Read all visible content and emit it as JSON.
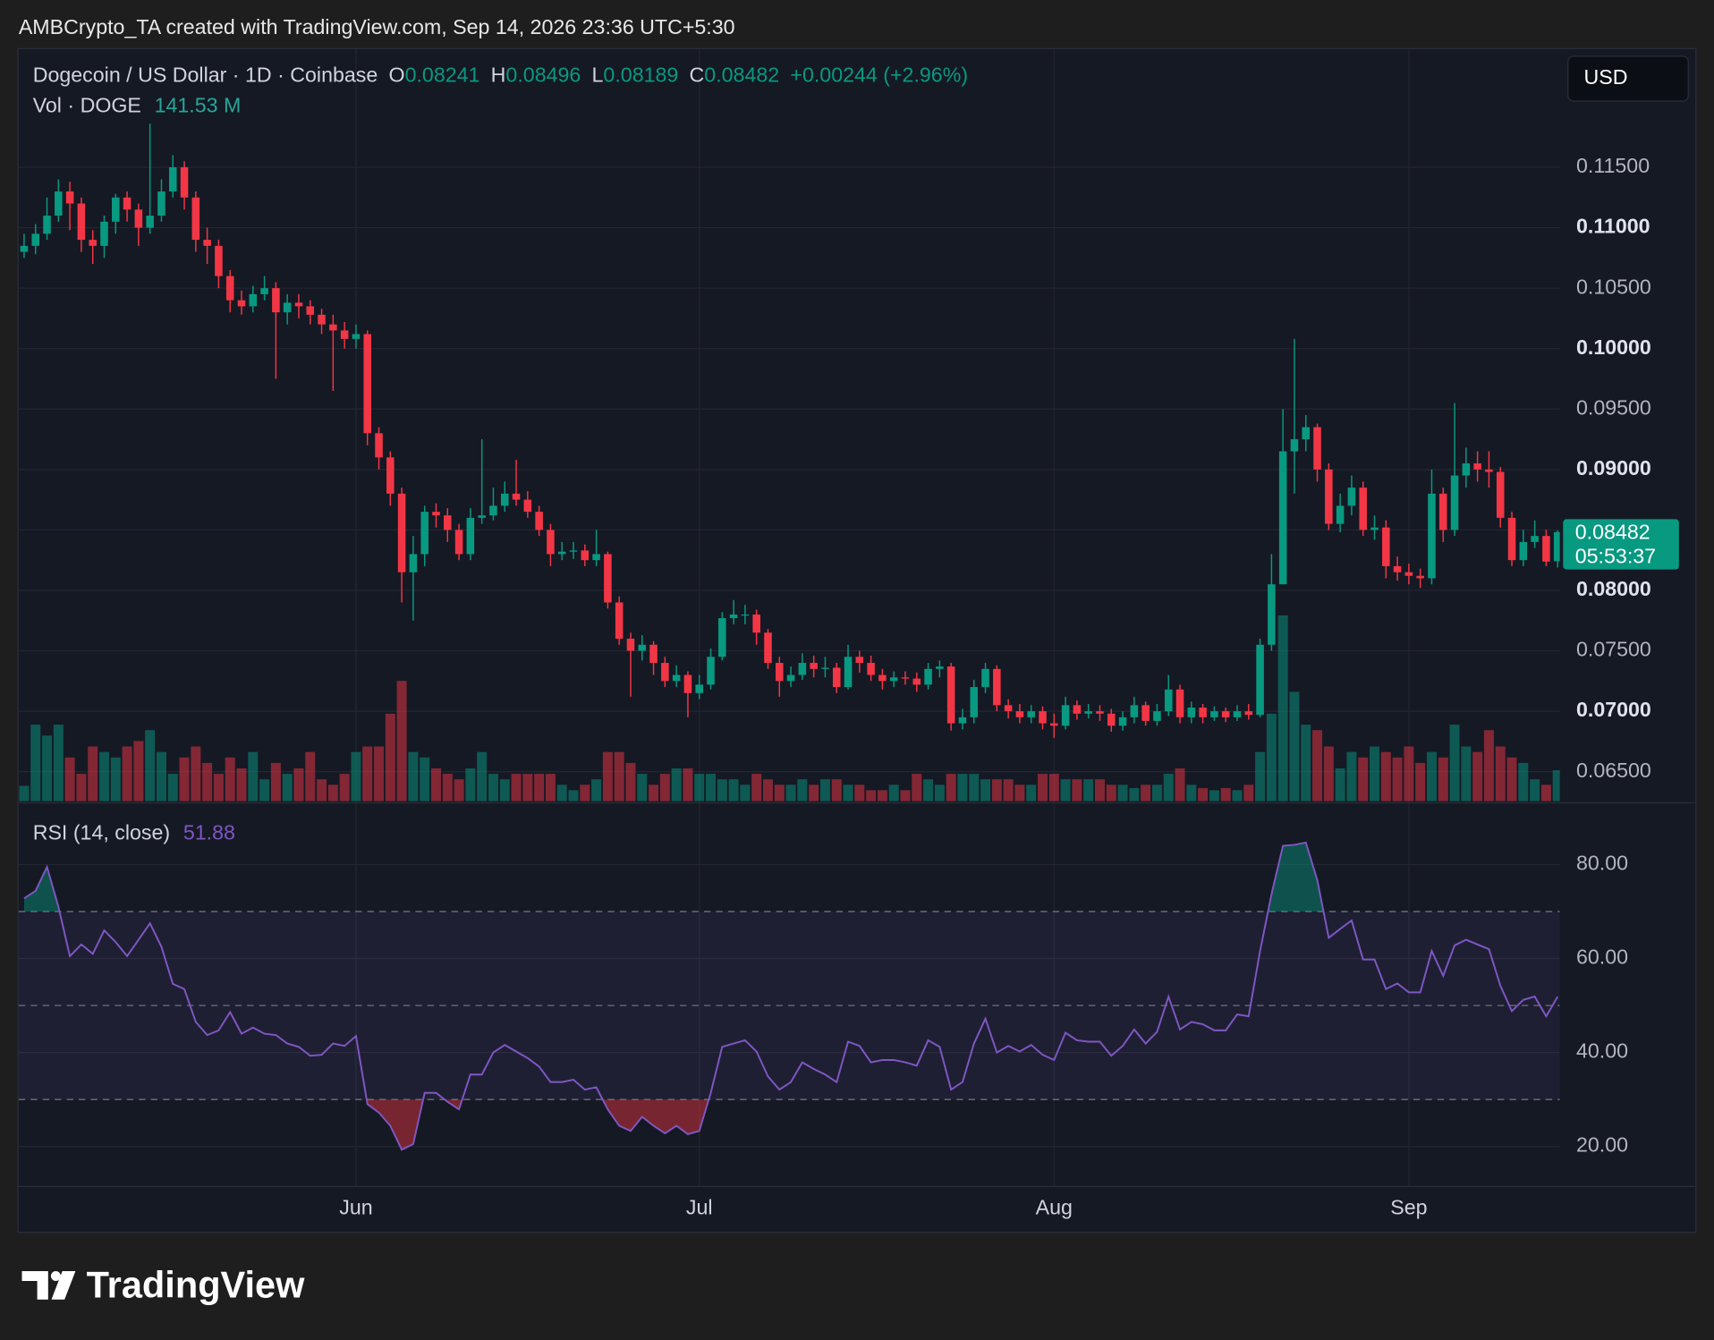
{
  "header": {
    "attribution": "AMBCrypto_TA created with TradingView.com, Sep 14, 2026 23:36 UTC+5:30",
    "brand": "TradingView"
  },
  "chart_data": [
    {
      "type": "candlestick",
      "title": "Dogecoin / US Dollar · 1D · Coinbase",
      "ohlc_labels": [
        "O",
        "H",
        "L",
        "C"
      ],
      "change_label": "+0.00244 (+2.96%)",
      "currency": "USD",
      "countdown": "05:53:37",
      "up_color": "#089981",
      "down_color": "#f23645",
      "grid": true,
      "categories": [
        null,
        null,
        null,
        null,
        null,
        null,
        null,
        null,
        null,
        null,
        null,
        null,
        null,
        null,
        null,
        null,
        null,
        null,
        null,
        null,
        null,
        null,
        null,
        null,
        null,
        null,
        null,
        null,
        null,
        "Jun",
        null,
        null,
        null,
        null,
        null,
        null,
        null,
        null,
        null,
        null,
        null,
        null,
        null,
        null,
        null,
        null,
        null,
        null,
        null,
        null,
        null,
        null,
        null,
        null,
        null,
        null,
        null,
        null,
        null,
        "Jul",
        null,
        null,
        null,
        null,
        null,
        null,
        null,
        null,
        null,
        null,
        null,
        null,
        null,
        null,
        null,
        null,
        null,
        null,
        null,
        null,
        null,
        null,
        null,
        null,
        null,
        null,
        null,
        null,
        null,
        null,
        "Aug",
        null,
        null,
        null,
        null,
        null,
        null,
        null,
        null,
        null,
        null,
        null,
        null,
        null,
        null,
        null,
        null,
        null,
        null,
        null,
        null,
        null,
        null,
        null,
        null,
        null,
        null,
        null,
        null,
        null,
        null,
        "Sep",
        null,
        null,
        null,
        null,
        null,
        null,
        null,
        null,
        null,
        null,
        null,
        null,
        null
      ],
      "open": [
        0.108,
        0.1085,
        0.1095,
        0.111,
        0.113,
        0.112,
        0.109,
        0.1085,
        0.1105,
        0.1125,
        0.1115,
        0.11,
        0.111,
        0.113,
        0.115,
        0.1125,
        0.109,
        0.1085,
        0.106,
        0.104,
        0.1035,
        0.1045,
        0.105,
        0.103,
        0.1038,
        0.1035,
        0.1028,
        0.102,
        0.1015,
        0.1008,
        0.1012,
        0.093,
        0.091,
        0.088,
        0.0815,
        0.083,
        0.0865,
        0.0862,
        0.085,
        0.083,
        0.086,
        0.0862,
        0.087,
        0.088,
        0.0875,
        0.0865,
        0.085,
        0.083,
        0.0832,
        0.0833,
        0.0825,
        0.083,
        0.079,
        0.076,
        0.075,
        0.0755,
        0.074,
        0.0725,
        0.073,
        0.0715,
        0.0722,
        0.0745,
        0.0777,
        0.078,
        0.078,
        0.0765,
        0.074,
        0.0725,
        0.073,
        0.074,
        0.0735,
        0.0736,
        0.072,
        0.0745,
        0.074,
        0.073,
        0.0725,
        0.0728,
        0.0727,
        0.0722,
        0.0735,
        0.0737,
        0.069,
        0.0695,
        0.072,
        0.0735,
        0.0705,
        0.07,
        0.0695,
        0.07,
        0.069,
        0.0688,
        0.0705,
        0.0698,
        0.07,
        0.0698,
        0.0688,
        0.0695,
        0.0705,
        0.0692,
        0.07,
        0.0718,
        0.0695,
        0.0703,
        0.0695,
        0.07,
        0.0695,
        0.07,
        0.0697,
        0.0755,
        0.0805,
        0.0915,
        0.0925,
        0.0935,
        0.09,
        0.0855,
        0.087,
        0.0885,
        0.085,
        0.0852,
        0.082,
        0.0815,
        0.0812,
        0.081,
        0.088,
        0.085,
        0.0895,
        0.0905,
        0.09,
        0.0898,
        0.086,
        0.0825,
        0.084,
        0.0845,
        0.08241
      ],
      "high": [
        0.1095,
        0.1103,
        0.1125,
        0.114,
        0.1138,
        0.1125,
        0.1098,
        0.111,
        0.1128,
        0.113,
        0.112,
        0.1186,
        0.114,
        0.116,
        0.1155,
        0.113,
        0.11,
        0.109,
        0.1065,
        0.1048,
        0.1052,
        0.106,
        0.1055,
        0.1045,
        0.1045,
        0.104,
        0.1033,
        0.1028,
        0.1022,
        0.102,
        0.1015,
        0.0935,
        0.0915,
        0.0885,
        0.0845,
        0.087,
        0.0872,
        0.0868,
        0.0855,
        0.0868,
        0.0925,
        0.0885,
        0.089,
        0.0908,
        0.0882,
        0.087,
        0.0855,
        0.084,
        0.084,
        0.0838,
        0.085,
        0.0832,
        0.0795,
        0.0765,
        0.0763,
        0.0758,
        0.0745,
        0.0738,
        0.0733,
        0.073,
        0.0752,
        0.0782,
        0.0792,
        0.0788,
        0.0784,
        0.0768,
        0.0745,
        0.0737,
        0.0748,
        0.0746,
        0.0745,
        0.074,
        0.0755,
        0.075,
        0.0746,
        0.0735,
        0.0733,
        0.0733,
        0.0732,
        0.074,
        0.0742,
        0.074,
        0.0702,
        0.0726,
        0.074,
        0.0738,
        0.071,
        0.0706,
        0.0705,
        0.0704,
        0.0698,
        0.0712,
        0.0709,
        0.0706,
        0.0705,
        0.0702,
        0.07,
        0.0712,
        0.0708,
        0.0706,
        0.073,
        0.0722,
        0.0708,
        0.0706,
        0.0704,
        0.0703,
        0.0705,
        0.0706,
        0.076,
        0.083,
        0.095,
        0.1008,
        0.0945,
        0.0938,
        0.0905,
        0.088,
        0.0895,
        0.089,
        0.0862,
        0.0858,
        0.0828,
        0.0822,
        0.0818,
        0.09,
        0.0885,
        0.0955,
        0.0918,
        0.0915,
        0.0915,
        0.0902,
        0.0865,
        0.085,
        0.0858,
        0.085,
        0.08496
      ],
      "low": [
        0.1075,
        0.1078,
        0.109,
        0.1105,
        0.1098,
        0.108,
        0.107,
        0.1075,
        0.1095,
        0.1105,
        0.1085,
        0.1095,
        0.1105,
        0.1125,
        0.1115,
        0.108,
        0.107,
        0.105,
        0.103,
        0.1028,
        0.103,
        0.104,
        0.0975,
        0.102,
        0.1025,
        0.102,
        0.1012,
        0.0965,
        0.1,
        0.1,
        0.092,
        0.09,
        0.087,
        0.079,
        0.0775,
        0.082,
        0.0852,
        0.084,
        0.0825,
        0.0825,
        0.0855,
        0.0858,
        0.0865,
        0.087,
        0.086,
        0.0845,
        0.082,
        0.0825,
        0.0826,
        0.082,
        0.082,
        0.0785,
        0.0755,
        0.0712,
        0.0742,
        0.073,
        0.072,
        0.072,
        0.0695,
        0.071,
        0.0718,
        0.0742,
        0.0772,
        0.0772,
        0.0755,
        0.0735,
        0.0712,
        0.072,
        0.0726,
        0.0728,
        0.0728,
        0.0715,
        0.0718,
        0.0732,
        0.0725,
        0.0718,
        0.072,
        0.0722,
        0.0716,
        0.0718,
        0.0728,
        0.0684,
        0.0685,
        0.069,
        0.0715,
        0.07,
        0.0694,
        0.069,
        0.069,
        0.0685,
        0.0678,
        0.0685,
        0.0693,
        0.0694,
        0.0692,
        0.0683,
        0.0684,
        0.069,
        0.0688,
        0.0688,
        0.0696,
        0.069,
        0.069,
        0.069,
        0.0692,
        0.0691,
        0.0692,
        0.0693,
        0.0695,
        0.075,
        0.0805,
        0.088,
        0.0915,
        0.089,
        0.085,
        0.0848,
        0.0862,
        0.0845,
        0.0842,
        0.081,
        0.0808,
        0.0805,
        0.0802,
        0.0805,
        0.084,
        0.0845,
        0.0885,
        0.089,
        0.0885,
        0.0852,
        0.082,
        0.082,
        0.0835,
        0.082,
        0.08189
      ],
      "close": [
        0.1085,
        0.1095,
        0.111,
        0.113,
        0.112,
        0.109,
        0.1085,
        0.1105,
        0.1125,
        0.1115,
        0.11,
        0.111,
        0.113,
        0.115,
        0.1125,
        0.109,
        0.1085,
        0.106,
        0.104,
        0.1035,
        0.1045,
        0.105,
        0.103,
        0.1038,
        0.1035,
        0.1028,
        0.102,
        0.1015,
        0.1008,
        0.1012,
        0.093,
        0.091,
        0.088,
        0.0815,
        0.083,
        0.0865,
        0.0862,
        0.085,
        0.083,
        0.086,
        0.0862,
        0.087,
        0.088,
        0.0875,
        0.0865,
        0.085,
        0.083,
        0.0832,
        0.0833,
        0.0825,
        0.083,
        0.079,
        0.076,
        0.075,
        0.0755,
        0.074,
        0.0725,
        0.073,
        0.0715,
        0.0722,
        0.0745,
        0.0777,
        0.078,
        0.078,
        0.0765,
        0.074,
        0.0725,
        0.073,
        0.074,
        0.0735,
        0.0736,
        0.072,
        0.0745,
        0.074,
        0.073,
        0.0725,
        0.0728,
        0.0727,
        0.0722,
        0.0735,
        0.0737,
        0.069,
        0.0695,
        0.072,
        0.0735,
        0.0705,
        0.07,
        0.0695,
        0.07,
        0.069,
        0.0688,
        0.0705,
        0.0698,
        0.07,
        0.0698,
        0.0688,
        0.0695,
        0.0705,
        0.0692,
        0.07,
        0.0718,
        0.0695,
        0.0703,
        0.0695,
        0.07,
        0.0695,
        0.07,
        0.0697,
        0.0755,
        0.0805,
        0.0915,
        0.0925,
        0.0935,
        0.09,
        0.0855,
        0.087,
        0.0885,
        0.085,
        0.0852,
        0.082,
        0.0815,
        0.0812,
        0.081,
        0.088,
        0.085,
        0.0895,
        0.0905,
        0.09,
        0.0898,
        0.086,
        0.0825,
        0.084,
        0.0845,
        0.08238,
        0.08482
      ],
      "volume": {
        "name": "Vol · DOGE",
        "value_label": "141.53 M",
        "up_color": "rgba(8,153,129,0.5)",
        "down_color": "rgba(242,54,69,0.5)",
        "values": [
          70,
          350,
          300,
          350,
          200,
          125,
          250,
          225,
          200,
          250,
          275,
          325,
          225,
          125,
          200,
          250,
          175,
          125,
          200,
          150,
          225,
          100,
          175,
          125,
          150,
          225,
          100,
          75,
          125,
          225,
          250,
          250,
          400,
          550,
          225,
          200,
          150,
          125,
          100,
          150,
          225,
          125,
          100,
          125,
          125,
          125,
          125,
          75,
          50,
          75,
          100,
          225,
          225,
          175,
          125,
          75,
          125,
          150,
          150,
          125,
          125,
          100,
          100,
          75,
          125,
          100,
          75,
          75,
          100,
          75,
          100,
          100,
          75,
          75,
          50,
          50,
          75,
          50,
          125,
          100,
          75,
          125,
          125,
          125,
          100,
          100,
          100,
          75,
          75,
          125,
          125,
          100,
          100,
          100,
          100,
          75,
          75,
          60,
          75,
          75,
          125,
          150,
          75,
          60,
          50,
          60,
          50,
          75,
          225,
          400,
          850,
          500,
          350,
          325,
          250,
          150,
          225,
          200,
          250,
          225,
          200,
          250,
          175,
          225,
          200,
          350,
          250,
          225,
          325,
          250,
          200,
          175,
          100,
          75,
          141.53
        ]
      },
      "ylim": [
        0.06256,
        0.12477
      ],
      "yticks": [
        {
          "value": 0.065,
          "label": "0.06500"
        },
        {
          "value": 0.07,
          "label": "0.07000"
        },
        {
          "value": 0.075,
          "label": "0.07500"
        },
        {
          "value": 0.08,
          "label": "0.08000"
        },
        {
          "value": 0.085,
          "label": "0.08500"
        },
        {
          "value": 0.09,
          "label": "0.09000"
        },
        {
          "value": 0.095,
          "label": "0.09500"
        },
        {
          "value": 0.1,
          "label": "0.10000"
        },
        {
          "value": 0.105,
          "label": "0.10500"
        },
        {
          "value": 0.11,
          "label": "0.11000"
        },
        {
          "value": 0.115,
          "label": "0.11500"
        }
      ]
    },
    {
      "type": "line",
      "grid": true,
      "levels": [
        30,
        50,
        70
      ],
      "band_color": "rgba(126,87,194,0.1)",
      "overbought_color": "rgba(8,153,129,0.45)",
      "oversold_color": "rgba(242,54,69,0.45)",
      "series": [
        {
          "name": "RSI (14, close)",
          "color": "#7e57c2",
          "values": [
            72.8,
            74.4,
            79.5,
            71,
            60.5,
            63,
            61,
            66,
            63.5,
            60.5,
            64,
            67.5,
            62.5,
            54.6,
            53.5,
            46.5,
            43.7,
            44.7,
            48.6,
            44,
            45.3,
            44,
            43.7,
            41.9,
            41.2,
            39.3,
            39.5,
            41.9,
            41.4,
            43.5,
            29,
            27.2,
            24.4,
            19.3,
            20.5,
            31.4,
            31.4,
            29.5,
            27.9,
            35.3,
            35.3,
            40,
            41.6,
            40.2,
            38.8,
            37,
            33.7,
            33.7,
            34.2,
            32.1,
            32.6,
            27.9,
            24.4,
            23.3,
            26.3,
            24.4,
            22.8,
            24.4,
            22.6,
            23.3,
            31.4,
            41.2,
            41.9,
            42.6,
            40.2,
            34.9,
            32.1,
            33.7,
            37.9,
            36.5,
            35.3,
            33.7,
            42.3,
            41.4,
            37.9,
            38.4,
            38.4,
            37.9,
            37.2,
            42.6,
            41.2,
            32.1,
            33.7,
            41.9,
            47.2,
            40,
            41.4,
            40.2,
            41.6,
            39.5,
            38.4,
            44.2,
            42.6,
            42.3,
            42.3,
            39.3,
            41.4,
            44.9,
            41.9,
            44.4,
            51.9,
            44.9,
            46.5,
            46,
            44.7,
            44.7,
            48.1,
            47.7,
            61.6,
            73.7,
            84,
            84.2,
            84.7,
            76.7,
            64.4,
            66.3,
            68.1,
            59.8,
            59.8,
            53.5,
            54.7,
            52.8,
            52.8,
            61.6,
            56.3,
            62.8,
            64,
            63,
            62,
            54.2,
            48.8,
            51.2,
            51.9,
            47.7,
            51.88
          ]
        }
      ],
      "ylim": [
        11.6,
        92.8
      ],
      "yticks": [
        {
          "value": 20,
          "label": "20.00"
        },
        {
          "value": 40,
          "label": "40.00"
        },
        {
          "value": 60,
          "label": "60.00"
        },
        {
          "value": 80,
          "label": "80.00"
        }
      ]
    }
  ]
}
